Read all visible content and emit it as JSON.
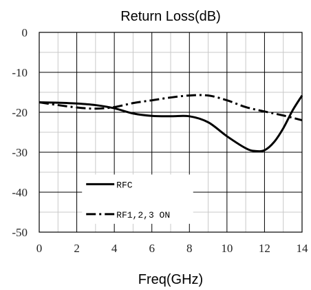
{
  "chart_data": {
    "type": "line",
    "title": "Return Loss(dB)",
    "xlabel": "Freq(GHz)",
    "ylabel": "",
    "xlim": [
      0,
      14
    ],
    "ylim": [
      -50,
      0
    ],
    "x_ticks": [
      "0",
      "2",
      "4",
      "6",
      "8",
      "10",
      "12",
      "14"
    ],
    "y_ticks": [
      "0",
      "-10",
      "-20",
      "-30",
      "-40",
      "-50"
    ],
    "grid": true,
    "legend_position": "lower-left",
    "series": [
      {
        "name": "RFC",
        "style": "solid",
        "color": "#000000",
        "x": [
          0,
          1,
          2,
          3,
          4,
          5,
          6,
          7,
          8,
          9,
          10,
          11,
          11.5,
          12,
          12.5,
          13,
          13.5,
          14
        ],
        "y": [
          -17.5,
          -17.6,
          -17.8,
          -18.2,
          -19.0,
          -20.3,
          -20.9,
          -21.0,
          -21.0,
          -22.5,
          -26.0,
          -29.0,
          -29.7,
          -29.5,
          -27.5,
          -24.0,
          -19.5,
          -15.8
        ]
      },
      {
        "name": "RF1,2,3 ON",
        "style": "dashdot",
        "color": "#000000",
        "x": [
          0,
          1,
          2,
          3,
          4,
          5,
          6,
          7,
          8,
          9,
          10,
          11,
          12,
          13,
          14
        ],
        "y": [
          -17.5,
          -18.2,
          -18.8,
          -19.1,
          -18.7,
          -17.7,
          -17.0,
          -16.3,
          -15.8,
          -15.8,
          -17.0,
          -18.7,
          -19.8,
          -20.8,
          -22.0
        ]
      }
    ]
  }
}
